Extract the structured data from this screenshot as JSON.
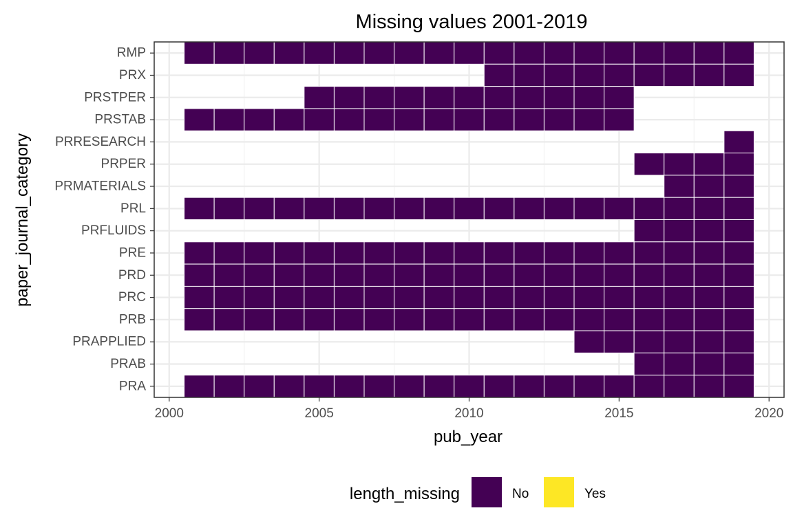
{
  "chart_data": {
    "type": "heatmap",
    "title": "Missing values 2001-2019",
    "xlabel": "pub_year",
    "ylabel": "paper_journal_category",
    "xlim": [
      1999.5,
      2020.5
    ],
    "x_ticks": [
      2000,
      2005,
      2010,
      2015,
      2020
    ],
    "x_tick_labels": [
      "2000",
      "2005",
      "2010",
      "2015",
      "2020"
    ],
    "categories": [
      "RMP",
      "PRX",
      "PRSTPER",
      "PRSTAB",
      "PRRESEARCH",
      "PRPER",
      "PRMATERIALS",
      "PRL",
      "PRFLUIDS",
      "PRE",
      "PRD",
      "PRC",
      "PRB",
      "PRAPPLIED",
      "PRAB",
      "PRA"
    ],
    "grid": true,
    "legend": {
      "title": "length_missing",
      "position": "bottom",
      "items": [
        {
          "label": "No",
          "color": "#440154"
        },
        {
          "label": "Yes",
          "color": "#FDE725"
        }
      ]
    },
    "series": [
      {
        "category": "RMP",
        "years": [
          2001,
          2019
        ],
        "length_missing": "No"
      },
      {
        "category": "PRX",
        "years": [
          2011,
          2019
        ],
        "length_missing": "No"
      },
      {
        "category": "PRSTPER",
        "years": [
          2005,
          2015
        ],
        "length_missing": "No"
      },
      {
        "category": "PRSTAB",
        "years": [
          2001,
          2015
        ],
        "length_missing": "No"
      },
      {
        "category": "PRRESEARCH",
        "years": [
          2019,
          2019
        ],
        "length_missing": "No"
      },
      {
        "category": "PRPER",
        "years": [
          2016,
          2019
        ],
        "length_missing": "No"
      },
      {
        "category": "PRMATERIALS",
        "years": [
          2017,
          2019
        ],
        "length_missing": "No"
      },
      {
        "category": "PRL",
        "years": [
          2001,
          2019
        ],
        "length_missing": "No"
      },
      {
        "category": "PRFLUIDS",
        "years": [
          2016,
          2019
        ],
        "length_missing": "No"
      },
      {
        "category": "PRE",
        "years": [
          2001,
          2019
        ],
        "length_missing": "No"
      },
      {
        "category": "PRD",
        "years": [
          2001,
          2019
        ],
        "length_missing": "No"
      },
      {
        "category": "PRC",
        "years": [
          2001,
          2019
        ],
        "length_missing": "No"
      },
      {
        "category": "PRB",
        "years": [
          2001,
          2019
        ],
        "length_missing": "No"
      },
      {
        "category": "PRAPPLIED",
        "years": [
          2014,
          2019
        ],
        "length_missing": "No"
      },
      {
        "category": "PRAB",
        "years": [
          2016,
          2019
        ],
        "length_missing": "No"
      },
      {
        "category": "PRA",
        "years": [
          2001,
          2019
        ],
        "length_missing": "No"
      }
    ]
  }
}
